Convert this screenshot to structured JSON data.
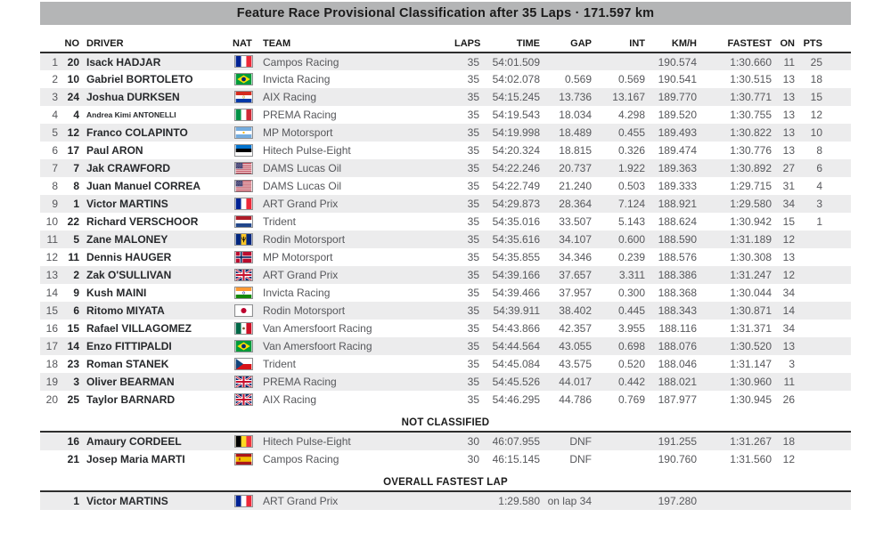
{
  "title": "Feature Race Provisional Classification after 35 Laps · 171.597 km",
  "table": {
    "columns": [
      "NO",
      "DRIVER",
      "NAT",
      "TEAM",
      "LAPS",
      "TIME",
      "GAP",
      "INT",
      "KM/H",
      "FASTEST",
      "ON",
      "PTS"
    ],
    "rows": [
      {
        "pos": "1",
        "no": "20",
        "driver": "Isack HADJAR",
        "nat": "fr",
        "team": "Campos Racing",
        "laps": "35",
        "time": "54:01.509",
        "gap": "",
        "int": "",
        "kmh": "190.574",
        "fastest": "1:30.660",
        "on": "11",
        "pts": "25"
      },
      {
        "pos": "2",
        "no": "10",
        "driver": "Gabriel BORTOLETO",
        "nat": "br",
        "team": "Invicta Racing",
        "laps": "35",
        "time": "54:02.078",
        "gap": "0.569",
        "int": "0.569",
        "kmh": "190.541",
        "fastest": "1:30.515",
        "on": "13",
        "pts": "18"
      },
      {
        "pos": "3",
        "no": "24",
        "driver": "Joshua DURKSEN",
        "nat": "py",
        "team": "AIX Racing",
        "laps": "35",
        "time": "54:15.245",
        "gap": "13.736",
        "int": "13.167",
        "kmh": "189.770",
        "fastest": "1:30.771",
        "on": "13",
        "pts": "15"
      },
      {
        "pos": "4",
        "no": "4",
        "driver": "Andrea Kimi ANTONELLI",
        "nat": "it",
        "team": "PREMA Racing",
        "laps": "35",
        "time": "54:19.543",
        "gap": "18.034",
        "int": "4.298",
        "kmh": "189.520",
        "fastest": "1:30.755",
        "on": "13",
        "pts": "12"
      },
      {
        "pos": "5",
        "no": "12",
        "driver": "Franco COLAPINTO",
        "nat": "ar",
        "team": "MP Motorsport",
        "laps": "35",
        "time": "54:19.998",
        "gap": "18.489",
        "int": "0.455",
        "kmh": "189.493",
        "fastest": "1:30.822",
        "on": "13",
        "pts": "10"
      },
      {
        "pos": "6",
        "no": "17",
        "driver": "Paul ARON",
        "nat": "ee",
        "team": "Hitech Pulse-Eight",
        "laps": "35",
        "time": "54:20.324",
        "gap": "18.815",
        "int": "0.326",
        "kmh": "189.474",
        "fastest": "1:30.776",
        "on": "13",
        "pts": "8"
      },
      {
        "pos": "7",
        "no": "7",
        "driver": "Jak CRAWFORD",
        "nat": "us",
        "team": "DAMS Lucas Oil",
        "laps": "35",
        "time": "54:22.246",
        "gap": "20.737",
        "int": "1.922",
        "kmh": "189.363",
        "fastest": "1:30.892",
        "on": "27",
        "pts": "6"
      },
      {
        "pos": "8",
        "no": "8",
        "driver": "Juan Manuel CORREA",
        "nat": "us",
        "team": "DAMS Lucas Oil",
        "laps": "35",
        "time": "54:22.749",
        "gap": "21.240",
        "int": "0.503",
        "kmh": "189.333",
        "fastest": "1:29.715",
        "on": "31",
        "pts": "4"
      },
      {
        "pos": "9",
        "no": "1",
        "driver": "Victor MARTINS",
        "nat": "fr",
        "team": "ART Grand Prix",
        "laps": "35",
        "time": "54:29.873",
        "gap": "28.364",
        "int": "7.124",
        "kmh": "188.921",
        "fastest": "1:29.580",
        "on": "34",
        "pts": "3"
      },
      {
        "pos": "10",
        "no": "22",
        "driver": "Richard VERSCHOOR",
        "nat": "nl",
        "team": "Trident",
        "laps": "35",
        "time": "54:35.016",
        "gap": "33.507",
        "int": "5.143",
        "kmh": "188.624",
        "fastest": "1:30.942",
        "on": "15",
        "pts": "1"
      },
      {
        "pos": "11",
        "no": "5",
        "driver": "Zane MALONEY",
        "nat": "bb",
        "team": "Rodin Motorsport",
        "laps": "35",
        "time": "54:35.616",
        "gap": "34.107",
        "int": "0.600",
        "kmh": "188.590",
        "fastest": "1:31.189",
        "on": "12",
        "pts": ""
      },
      {
        "pos": "12",
        "no": "11",
        "driver": "Dennis HAUGER",
        "nat": "no",
        "team": "MP Motorsport",
        "laps": "35",
        "time": "54:35.855",
        "gap": "34.346",
        "int": "0.239",
        "kmh": "188.576",
        "fastest": "1:30.308",
        "on": "13",
        "pts": ""
      },
      {
        "pos": "13",
        "no": "2",
        "driver": "Zak O'SULLIVAN",
        "nat": "gb",
        "team": "ART Grand Prix",
        "laps": "35",
        "time": "54:39.166",
        "gap": "37.657",
        "int": "3.311",
        "kmh": "188.386",
        "fastest": "1:31.247",
        "on": "12",
        "pts": ""
      },
      {
        "pos": "14",
        "no": "9",
        "driver": "Kush MAINI",
        "nat": "in",
        "team": "Invicta Racing",
        "laps": "35",
        "time": "54:39.466",
        "gap": "37.957",
        "int": "0.300",
        "kmh": "188.368",
        "fastest": "1:30.044",
        "on": "34",
        "pts": ""
      },
      {
        "pos": "15",
        "no": "6",
        "driver": "Ritomo MIYATA",
        "nat": "jp",
        "team": "Rodin Motorsport",
        "laps": "35",
        "time": "54:39.911",
        "gap": "38.402",
        "int": "0.445",
        "kmh": "188.343",
        "fastest": "1:30.871",
        "on": "14",
        "pts": ""
      },
      {
        "pos": "16",
        "no": "15",
        "driver": "Rafael VILLAGOMEZ",
        "nat": "mx",
        "team": "Van Amersfoort Racing",
        "laps": "35",
        "time": "54:43.866",
        "gap": "42.357",
        "int": "3.955",
        "kmh": "188.116",
        "fastest": "1:31.371",
        "on": "34",
        "pts": ""
      },
      {
        "pos": "17",
        "no": "14",
        "driver": "Enzo FITTIPALDI",
        "nat": "br",
        "team": "Van Amersfoort Racing",
        "laps": "35",
        "time": "54:44.564",
        "gap": "43.055",
        "int": "0.698",
        "kmh": "188.076",
        "fastest": "1:30.520",
        "on": "13",
        "pts": ""
      },
      {
        "pos": "18",
        "no": "23",
        "driver": "Roman STANEK",
        "nat": "cz",
        "team": "Trident",
        "laps": "35",
        "time": "54:45.084",
        "gap": "43.575",
        "int": "0.520",
        "kmh": "188.046",
        "fastest": "1:31.147",
        "on": "3",
        "pts": ""
      },
      {
        "pos": "19",
        "no": "3",
        "driver": "Oliver BEARMAN",
        "nat": "gb",
        "team": "PREMA Racing",
        "laps": "35",
        "time": "54:45.526",
        "gap": "44.017",
        "int": "0.442",
        "kmh": "188.021",
        "fastest": "1:30.960",
        "on": "11",
        "pts": ""
      },
      {
        "pos": "20",
        "no": "25",
        "driver": "Taylor BARNARD",
        "nat": "gb",
        "team": "AIX Racing",
        "laps": "35",
        "time": "54:46.295",
        "gap": "44.786",
        "int": "0.769",
        "kmh": "187.977",
        "fastest": "1:30.945",
        "on": "26",
        "pts": ""
      }
    ]
  },
  "not_classified": {
    "label": "NOT CLASSIFIED",
    "rows": [
      {
        "pos": "",
        "no": "16",
        "driver": "Amaury CORDEEL",
        "nat": "be",
        "team": "Hitech Pulse-Eight",
        "laps": "30",
        "time": "46:07.955",
        "gap": "DNF",
        "int": "",
        "kmh": "191.255",
        "fastest": "1:31.267",
        "on": "18",
        "pts": ""
      },
      {
        "pos": "",
        "no": "21",
        "driver": "Josep Maria MARTI",
        "nat": "es",
        "team": "Campos Racing",
        "laps": "30",
        "time": "46:15.145",
        "gap": "DNF",
        "int": "",
        "kmh": "190.760",
        "fastest": "1:31.560",
        "on": "12",
        "pts": ""
      }
    ]
  },
  "overall_fastest_lap": {
    "label": "OVERALL FASTEST LAP",
    "rows": [
      {
        "pos": "",
        "no": "1",
        "driver": "Victor MARTINS",
        "nat": "fr",
        "team": "ART Grand Prix",
        "laps": "",
        "time": "1:29.580",
        "gap": "on lap 34",
        "int": "",
        "kmh": "197.280",
        "fastest": "",
        "on": "",
        "pts": ""
      }
    ]
  },
  "colors": {
    "title_bar_bg": "#b4b5b6",
    "stripe_bg": "#ececed",
    "rule": "#2e2e2e",
    "text_primary": "#26282b",
    "text_secondary": "#56575b"
  }
}
